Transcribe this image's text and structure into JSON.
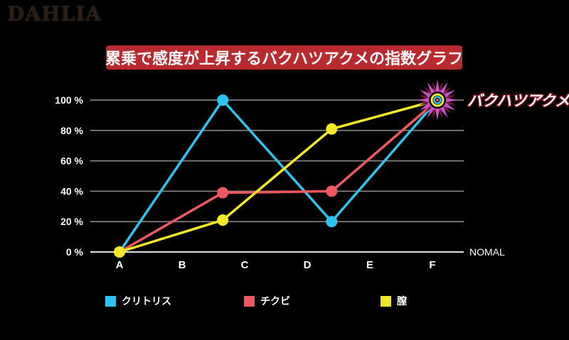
{
  "logo": "DAHLIA",
  "title": {
    "text": "累乗で感度が上昇するバクハツアクメの指数グラフ",
    "bg_color": "#b92a2e",
    "text_color": "#ffffff"
  },
  "chart_data": {
    "type": "line",
    "title": "累乗で感度が上昇するバクハツアクメの指数グラフ",
    "x_tick_labels": [
      "A",
      "B",
      "C",
      "D",
      "E",
      "F"
    ],
    "y_ticks": [
      0,
      20,
      40,
      60,
      80,
      100
    ],
    "y_tick_labels": [
      "0 %",
      "20 %",
      "40 %",
      "60 %",
      "80 %",
      "100 %"
    ],
    "ylim": [
      0,
      100
    ],
    "axis_end_label": "NOMAL",
    "grid": "horizontal-only",
    "grid_color": "#8f8f8f",
    "baseline_color": "#e2e2e2",
    "x": [
      0,
      1.65,
      3.39,
      5.08
    ],
    "series": [
      {
        "name": "クリトリス",
        "color": "#2ec2ef",
        "values": [
          0,
          100,
          20,
          100
        ]
      },
      {
        "name": "チクビ",
        "color": "#f0585f",
        "values": [
          0,
          39,
          40,
          100
        ]
      },
      {
        "name": "膣",
        "color": "#f5e927",
        "values": [
          0,
          21,
          81,
          100
        ]
      }
    ],
    "burst": {
      "label": "バクハツアクメ",
      "x": 5.08,
      "value": 100,
      "star_color": "#c94fc4",
      "star_back_color": "#7c1440",
      "ring_colors": [
        "#f5e927",
        "#2ec2ef",
        "#e8417c"
      ]
    }
  },
  "legend": {
    "items": [
      {
        "label": "クリトリス",
        "color": "#2ec2ef"
      },
      {
        "label": "チクビ",
        "color": "#f0585f"
      },
      {
        "label": "膣",
        "color": "#f5e927"
      }
    ]
  }
}
